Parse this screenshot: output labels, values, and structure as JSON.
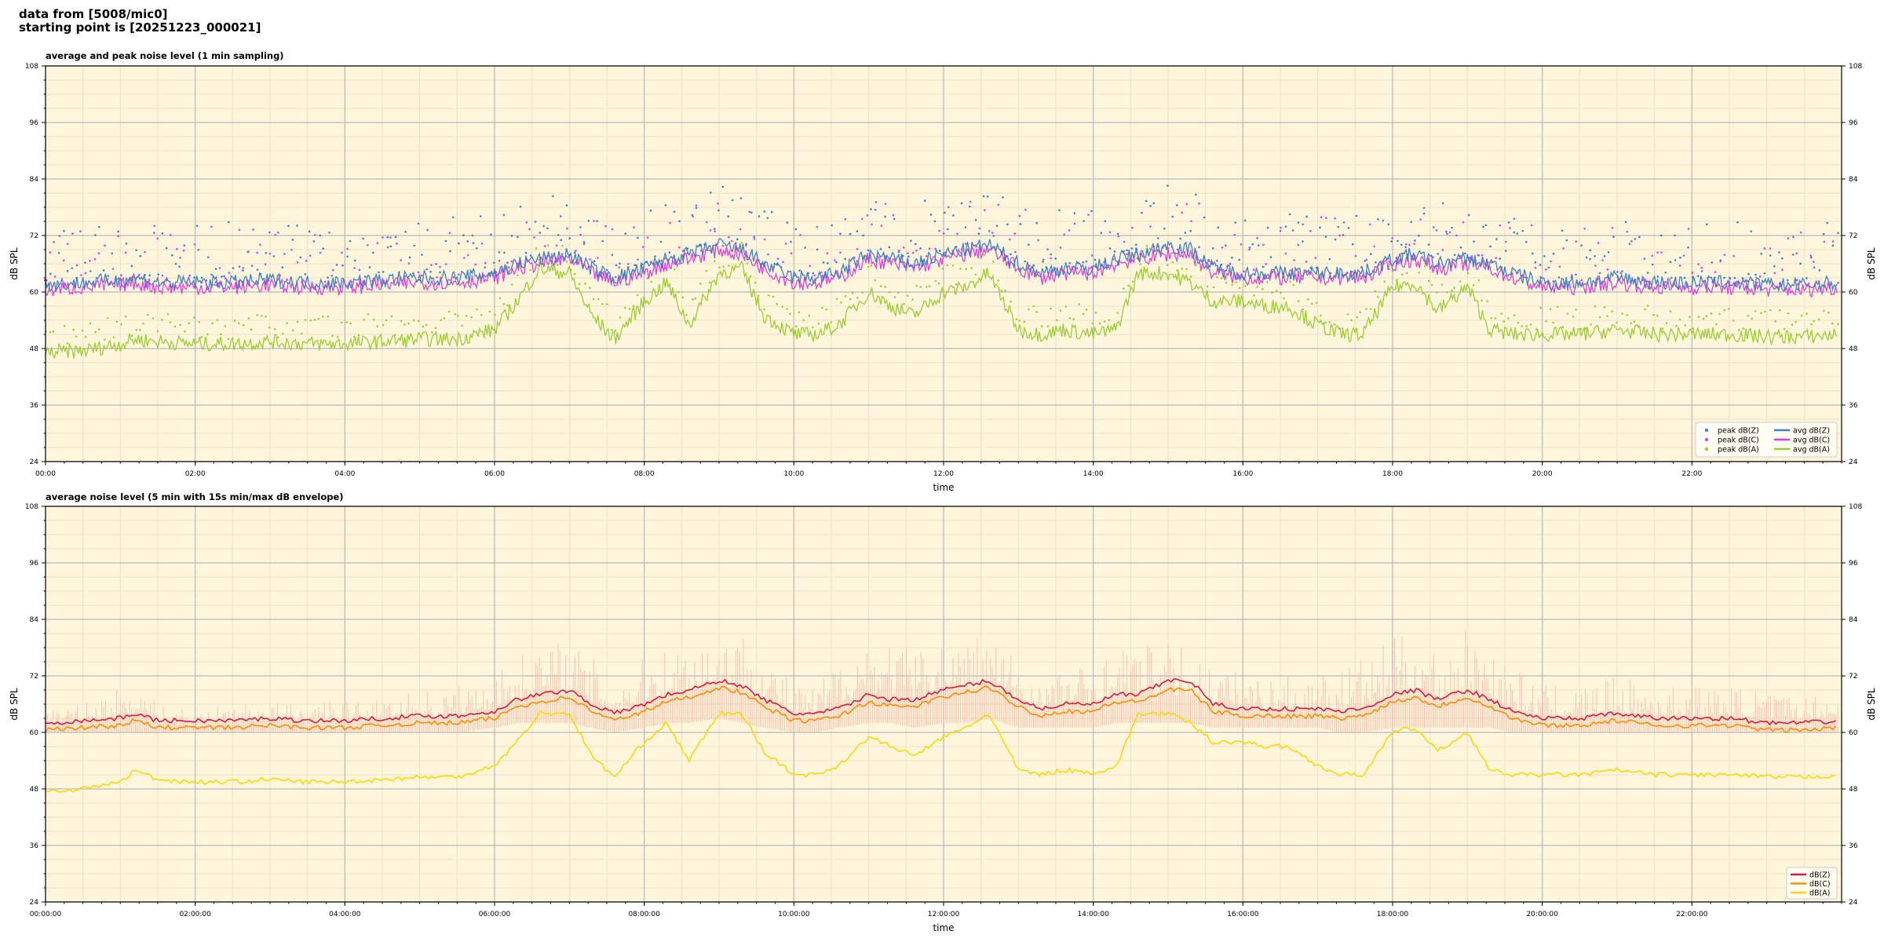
{
  "header": {
    "line1": "data from [5008/mic0]",
    "line2": "starting point is [20251223_000021]"
  },
  "colors": {
    "background": "#fdf6dc",
    "grid_major": "#b8b8b8",
    "grid_minor": "#ece2c4",
    "z": "#3b7fc4",
    "c": "#e040e0",
    "a": "#9acd32",
    "z5": "#d81b3c",
    "c5": "#ff8c00",
    "a5": "#ffd700",
    "envelope": "#f4b8a8"
  },
  "chart_data": [
    {
      "type": "line",
      "title": "average and peak noise level (1 min sampling)",
      "xlabel": "time",
      "ylabel": "dB SPL",
      "ylim": [
        24,
        108
      ],
      "yticks": [
        "24",
        "36",
        "48",
        "60",
        "72",
        "84",
        "96",
        "108"
      ],
      "xlim_hours": [
        0,
        24
      ],
      "xticks": [
        "00:00",
        "02:00",
        "04:00",
        "06:00",
        "08:00",
        "10:00",
        "12:00",
        "14:00",
        "16:00",
        "18:00",
        "20:00",
        "22:00"
      ],
      "grid": true,
      "legend_position": "lower-right",
      "legend": [
        {
          "label": "peak dB(Z)",
          "kind": "dot",
          "color_key": "z"
        },
        {
          "label": "peak dB(C)",
          "kind": "dot",
          "color_key": "c"
        },
        {
          "label": "peak dB(A)",
          "kind": "dot",
          "color_key": "a"
        },
        {
          "label": "avg dB(Z)",
          "kind": "line",
          "color_key": "z"
        },
        {
          "label": "avg dB(C)",
          "kind": "line",
          "color_key": "c"
        },
        {
          "label": "avg dB(A)",
          "kind": "line",
          "color_key": "a"
        }
      ],
      "x_hours": [
        0,
        0.5,
        1,
        1.2,
        1.5,
        2,
        2.5,
        3,
        3.5,
        4,
        4.5,
        5,
        5.5,
        6,
        6.3,
        6.6,
        7,
        7.3,
        7.6,
        8,
        8.3,
        8.6,
        9,
        9.3,
        9.6,
        10,
        10.3,
        10.6,
        11,
        11.3,
        11.6,
        12,
        12.3,
        12.6,
        13,
        13.3,
        13.6,
        14,
        14.3,
        14.6,
        15,
        15.3,
        15.6,
        16,
        16.3,
        16.6,
        17,
        17.3,
        17.6,
        18,
        18.3,
        18.6,
        19,
        19.3,
        19.6,
        20,
        20.5,
        21,
        21.5,
        22,
        22.5,
        23,
        23.5,
        24
      ],
      "series": [
        {
          "name": "avg dB(Z)",
          "color_key": "z",
          "values": [
            61.5,
            62,
            62.5,
            63,
            62,
            62,
            62,
            62.5,
            62,
            62,
            62.5,
            63,
            63,
            64,
            66,
            67,
            68,
            65,
            63,
            65,
            67,
            68,
            70,
            69,
            66,
            63,
            63,
            64,
            68,
            67,
            66,
            68,
            69,
            70,
            66,
            64,
            65,
            65,
            67,
            68,
            70,
            69,
            65,
            64,
            64,
            64,
            64,
            64,
            64,
            67,
            68,
            66,
            67,
            66,
            64,
            62,
            62,
            63,
            62,
            62,
            62,
            61.5,
            61.5,
            62
          ]
        },
        {
          "name": "avg dB(C)",
          "color_key": "c",
          "values": [
            60.5,
            61,
            61.5,
            62,
            61,
            61,
            61,
            61.5,
            61,
            61,
            61.5,
            62,
            62,
            63,
            65,
            66,
            67,
            64,
            62,
            64,
            66,
            67,
            69,
            68,
            65,
            62,
            62,
            63,
            67,
            66,
            65,
            67,
            68,
            69,
            65,
            63,
            64,
            64,
            66,
            67,
            68,
            68,
            64,
            63,
            63,
            63,
            63,
            63,
            63,
            66,
            67,
            65,
            66,
            65,
            63,
            61,
            61,
            62,
            61,
            61,
            61,
            60.5,
            60.5,
            61
          ]
        },
        {
          "name": "avg dB(A)",
          "color_key": "a",
          "values": [
            47,
            47.5,
            49,
            50,
            49.5,
            49,
            49,
            49.5,
            49,
            49,
            49.5,
            50,
            50,
            52,
            58,
            65,
            64,
            55,
            50,
            58,
            62,
            53,
            64,
            65,
            55,
            51,
            51,
            53,
            60,
            57,
            55,
            60,
            61,
            64,
            52,
            51,
            52,
            51,
            52,
            64,
            64,
            62,
            58,
            58,
            57,
            57,
            53,
            51,
            51,
            61,
            62,
            56,
            61,
            52,
            51,
            51,
            51,
            52,
            51,
            51,
            51,
            50.5,
            50.5,
            51
          ]
        }
      ]
    },
    {
      "type": "line",
      "title": "average noise level (5 min with 15s min/max dB envelope)",
      "xlabel": "time",
      "ylabel": "dB SPL",
      "ylim": [
        24,
        108
      ],
      "yticks": [
        "24",
        "36",
        "48",
        "60",
        "72",
        "84",
        "96",
        "108"
      ],
      "xlim_hours": [
        0,
        24
      ],
      "xticks": [
        "00:00:00",
        "02:00:00",
        "04:00:00",
        "06:00:00",
        "08:00:00",
        "10:00:00",
        "12:00:00",
        "14:00:00",
        "16:00:00",
        "18:00:00",
        "20:00:00",
        "22:00:00"
      ],
      "grid": true,
      "legend_position": "lower-right",
      "legend": [
        {
          "label": "dB(Z)",
          "kind": "line",
          "color_key": "z5"
        },
        {
          "label": "dB(C)",
          "kind": "line",
          "color_key": "c5"
        },
        {
          "label": "dB(A)",
          "kind": "line",
          "color_key": "a5"
        }
      ],
      "x_hours": [
        0,
        0.5,
        1,
        1.2,
        1.5,
        2,
        2.5,
        3,
        3.5,
        4,
        4.5,
        5,
        5.5,
        6,
        6.3,
        6.6,
        7,
        7.3,
        7.6,
        8,
        8.3,
        8.6,
        9,
        9.3,
        9.6,
        10,
        10.3,
        10.6,
        11,
        11.3,
        11.6,
        12,
        12.3,
        12.6,
        13,
        13.3,
        13.6,
        14,
        14.3,
        14.6,
        15,
        15.3,
        15.6,
        16,
        16.3,
        16.6,
        17,
        17.3,
        17.6,
        18,
        18.3,
        18.6,
        19,
        19.3,
        19.6,
        20,
        20.5,
        21,
        21.5,
        22,
        22.5,
        23,
        23.5,
        24
      ],
      "envelope_max": [
        66,
        66,
        70,
        72,
        66,
        65,
        66,
        67,
        66,
        67,
        67,
        69,
        70,
        73,
        76,
        80,
        80,
        76,
        72,
        76,
        79,
        80,
        83,
        82,
        78,
        70,
        70,
        76,
        81,
        80,
        78,
        80,
        81,
        82,
        76,
        72,
        74,
        75,
        78,
        79,
        79,
        78,
        74,
        73,
        72,
        72,
        72,
        74,
        76,
        80,
        81,
        78,
        82,
        80,
        74,
        70,
        70,
        72,
        70,
        70,
        70,
        69,
        68,
        69
      ],
      "envelope_min": [
        60,
        60,
        60,
        60,
        60,
        60,
        60,
        60,
        60,
        60,
        60,
        60,
        60,
        61,
        62,
        62,
        62,
        61,
        60,
        61,
        62,
        62,
        63,
        62,
        61,
        60,
        60,
        61,
        62,
        62,
        61,
        62,
        62,
        63,
        61,
        61,
        61,
        61,
        62,
        62,
        62,
        62,
        61,
        61,
        61,
        61,
        61,
        60,
        60,
        61,
        61,
        61,
        61,
        61,
        60,
        60,
        60,
        60,
        60,
        60,
        60,
        60,
        60,
        60
      ],
      "series": [
        {
          "name": "dB(Z)",
          "color_key": "z5",
          "values": [
            62,
            62.5,
            63,
            64,
            62.5,
            62.5,
            62.5,
            63,
            62.5,
            62.5,
            63,
            63.5,
            63.5,
            64.5,
            67,
            68,
            69,
            66,
            64,
            66,
            68,
            69,
            71,
            70,
            67,
            64,
            64,
            65,
            68,
            67,
            67,
            69,
            70,
            71,
            67,
            65,
            66,
            66,
            68,
            68,
            71,
            71,
            66,
            65,
            65,
            65,
            65,
            64.5,
            65,
            68,
            69,
            67,
            69,
            67,
            64.5,
            63,
            63,
            64,
            63,
            63,
            63,
            62,
            62,
            62.5
          ]
        },
        {
          "name": "dB(C)",
          "color_key": "c5",
          "values": [
            60.5,
            61,
            61.5,
            62.5,
            61,
            61,
            61,
            61.5,
            61,
            61,
            61.5,
            62,
            62,
            63,
            65.5,
            66.5,
            67.5,
            64.5,
            62.5,
            64.5,
            66.5,
            67.5,
            69.5,
            68.5,
            65.5,
            62.5,
            62.5,
            63.5,
            66.5,
            65.5,
            65.5,
            67.5,
            68.5,
            69.5,
            65.5,
            63.5,
            64.5,
            64.5,
            66.5,
            66.5,
            69,
            69,
            64.5,
            63.5,
            63.5,
            63.5,
            63.5,
            63,
            63.5,
            66.5,
            67.5,
            65.5,
            67.5,
            65.5,
            63,
            61.5,
            61.5,
            62.5,
            61.5,
            61.5,
            61.5,
            60.5,
            60.5,
            61
          ]
        },
        {
          "name": "dB(A)",
          "color_key": "a5",
          "values": [
            47.5,
            48,
            49.5,
            52,
            50,
            49.5,
            49.5,
            50,
            49.5,
            49.5,
            50,
            50.5,
            50.5,
            53,
            58,
            64,
            64,
            55,
            50.5,
            58,
            62,
            54,
            64,
            64,
            56,
            51,
            51,
            53,
            59,
            57,
            55,
            59,
            61,
            64,
            52,
            51,
            52,
            51.5,
            52.5,
            64,
            64,
            62,
            58,
            58,
            57,
            57,
            53,
            51,
            51,
            60,
            61,
            56,
            60,
            52,
            51,
            51,
            51,
            52,
            51,
            51,
            51,
            50.5,
            50.5,
            51
          ]
        }
      ]
    }
  ]
}
